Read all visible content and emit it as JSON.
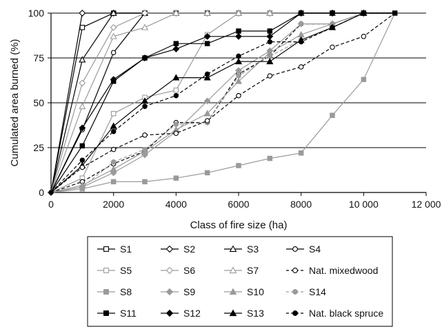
{
  "chart_data": {
    "type": "line",
    "title": "",
    "xlabel": "Class of fire size (ha)",
    "ylabel": "Cumulated area burned (%)",
    "xlim": [
      0,
      12000
    ],
    "ylim": [
      0,
      100
    ],
    "x_ticks": [
      0,
      2000,
      4000,
      6000,
      8000,
      10000,
      12000
    ],
    "x_tick_labels": [
      "0",
      "2000",
      "4000",
      "6000",
      "8000",
      "10 000",
      "12 000"
    ],
    "y_ticks": [
      0,
      25,
      50,
      75,
      100
    ],
    "y_tick_labels": [
      "0",
      "25",
      "50",
      "75",
      "100"
    ],
    "grid": "horizontal",
    "legend_position": "bottom",
    "series": [
      {
        "name": "S1",
        "color": "#000000",
        "dash": "solid",
        "marker": "square",
        "fill": "open",
        "x": [
          0,
          1000,
          2000,
          3000,
          4000,
          5000,
          6000,
          7000,
          8000,
          9000,
          10000,
          11000
        ],
        "y": [
          0,
          92,
          100,
          100,
          100,
          100,
          100,
          100,
          100,
          100,
          100,
          100
        ]
      },
      {
        "name": "S2",
        "color": "#000000",
        "dash": "solid",
        "marker": "diamond",
        "fill": "open",
        "x": [
          0,
          1000,
          2000,
          3000,
          4000,
          5000,
          6000,
          7000,
          8000,
          9000,
          10000,
          11000
        ],
        "y": [
          0,
          100,
          100,
          100,
          100,
          100,
          100,
          100,
          100,
          100,
          100,
          100
        ]
      },
      {
        "name": "S3",
        "color": "#000000",
        "dash": "solid",
        "marker": "triangle",
        "fill": "open",
        "x": [
          0,
          1000,
          2000,
          3000,
          4000,
          5000,
          6000,
          7000,
          8000,
          9000,
          10000,
          11000
        ],
        "y": [
          0,
          74,
          100,
          100,
          100,
          100,
          100,
          100,
          100,
          100,
          100,
          100
        ]
      },
      {
        "name": "S4",
        "color": "#000000",
        "dash": "solid",
        "marker": "circle",
        "fill": "open",
        "x": [
          0,
          1000,
          2000,
          3000,
          4000,
          5000,
          6000,
          7000,
          8000,
          9000,
          10000,
          11000
        ],
        "y": [
          0,
          35,
          78,
          100,
          100,
          100,
          100,
          100,
          100,
          100,
          100,
          100
        ]
      },
      {
        "name": "S5",
        "color": "#9a9a9a",
        "dash": "solid",
        "marker": "square",
        "fill": "open",
        "x": [
          0,
          1000,
          2000,
          3000,
          4000,
          5000,
          6000,
          7000,
          8000,
          9000,
          10000,
          11000
        ],
        "y": [
          0,
          8,
          44,
          53,
          57,
          88,
          100,
          100,
          100,
          100,
          100,
          100
        ]
      },
      {
        "name": "S6",
        "color": "#9a9a9a",
        "dash": "solid",
        "marker": "diamond",
        "fill": "open",
        "x": [
          0,
          1000,
          2000,
          3000,
          4000,
          5000,
          6000,
          7000,
          8000,
          9000,
          10000,
          11000
        ],
        "y": [
          0,
          61,
          92,
          100,
          100,
          100,
          100,
          100,
          100,
          100,
          100,
          100
        ]
      },
      {
        "name": "S7",
        "color": "#9a9a9a",
        "dash": "solid",
        "marker": "triangle",
        "fill": "open",
        "x": [
          0,
          1000,
          2000,
          3000,
          4000,
          5000,
          6000,
          7000,
          8000,
          9000,
          10000,
          11000
        ],
        "y": [
          0,
          48,
          87,
          92,
          100,
          100,
          100,
          100,
          100,
          100,
          100,
          100
        ]
      },
      {
        "name": "Nat. mixedwood",
        "color": "#000000",
        "dash": "dashed",
        "marker": "circle",
        "fill": "open",
        "x": [
          0,
          1000,
          2000,
          3000,
          4000,
          5000,
          6000,
          7000,
          8000,
          9000,
          10000,
          11000
        ],
        "y": [
          0,
          6,
          16,
          23,
          39,
          39,
          66,
          76,
          94,
          94,
          100,
          100
        ]
      },
      {
        "name": "S8",
        "color": "#9a9a9a",
        "dash": "solid",
        "marker": "square",
        "fill": "filled",
        "x": [
          0,
          1000,
          2000,
          3000,
          4000,
          5000,
          6000,
          7000,
          8000,
          9000,
          10000,
          11000
        ],
        "y": [
          0,
          2,
          6,
          6,
          8,
          11,
          15,
          19,
          22,
          43,
          63,
          100
        ]
      },
      {
        "name": "S9",
        "color": "#9a9a9a",
        "dash": "solid",
        "marker": "diamond",
        "fill": "filled",
        "x": [
          0,
          1000,
          2000,
          3000,
          4000,
          5000,
          6000,
          7000,
          8000,
          9000,
          10000,
          11000
        ],
        "y": [
          0,
          3,
          11,
          21,
          34,
          51,
          68,
          79,
          94,
          94,
          100,
          100
        ]
      },
      {
        "name": "S10",
        "color": "#9a9a9a",
        "dash": "solid",
        "marker": "triangle",
        "fill": "filled",
        "x": [
          0,
          1000,
          2000,
          3000,
          4000,
          5000,
          6000,
          7000,
          8000,
          9000,
          10000,
          11000
        ],
        "y": [
          0,
          4,
          13,
          23,
          35,
          44,
          62,
          78,
          88,
          94,
          100,
          100
        ]
      },
      {
        "name": "S14",
        "color": "#9a9a9a",
        "dash": "dashed",
        "marker": "circle",
        "fill": "filled",
        "x": [
          0,
          1000,
          2000,
          3000,
          4000,
          5000,
          6000,
          7000,
          8000,
          9000,
          10000,
          11000
        ],
        "y": [
          0,
          3,
          17,
          24,
          38,
          39,
          65,
          76,
          85,
          92,
          100,
          100
        ]
      },
      {
        "name": "S11",
        "color": "#000000",
        "dash": "solid",
        "marker": "square",
        "fill": "filled",
        "x": [
          0,
          1000,
          2000,
          3000,
          4000,
          5000,
          6000,
          7000,
          8000,
          9000,
          10000,
          11000
        ],
        "y": [
          0,
          26,
          62,
          75,
          83,
          83,
          90,
          90,
          100,
          100,
          100,
          100
        ]
      },
      {
        "name": "S12",
        "color": "#000000",
        "dash": "solid",
        "marker": "diamond",
        "fill": "filled",
        "x": [
          0,
          1000,
          2000,
          3000,
          4000,
          5000,
          6000,
          7000,
          8000,
          9000,
          10000,
          11000
        ],
        "y": [
          0,
          36,
          63,
          75,
          80,
          87,
          87,
          87,
          100,
          100,
          100,
          100
        ]
      },
      {
        "name": "S13",
        "color": "#000000",
        "dash": "solid",
        "marker": "triangle",
        "fill": "filled",
        "x": [
          0,
          1000,
          2000,
          3000,
          4000,
          5000,
          6000,
          7000,
          8000,
          9000,
          10000,
          11000
        ],
        "y": [
          0,
          15,
          37,
          51,
          64,
          64,
          73,
          73,
          85,
          92,
          100,
          100
        ]
      },
      {
        "name": "Nat. black spruce",
        "color": "#000000",
        "dash": "dashed",
        "marker": "circle",
        "fill": "filled",
        "x": [
          0,
          1000,
          2000,
          3000,
          4000,
          5000,
          6000,
          7000,
          8000,
          9000,
          10000,
          11000
        ],
        "y": [
          0,
          18,
          34,
          48,
          54,
          66,
          76,
          84,
          84,
          92,
          100,
          100
        ]
      },
      {
        "name": "",
        "color": "#000000",
        "dash": "dashed",
        "marker": "circle",
        "fill": "open",
        "x": [
          0,
          1000,
          2000,
          3000,
          4000,
          5000,
          6000,
          7000,
          8000,
          9000,
          10000,
          11000
        ],
        "y": [
          0,
          14,
          24,
          32,
          33,
          40,
          54,
          65,
          70,
          81,
          87,
          100
        ]
      }
    ],
    "legend": {
      "rows": [
        [
          "S1",
          "S2",
          "S3",
          "S4"
        ],
        [
          "S5",
          "S6",
          "S7",
          "Nat. mixedwood"
        ],
        [
          "S8",
          "S9",
          "S10",
          "S14"
        ],
        [
          "S11",
          "S12",
          "S13",
          "Nat. black spruce"
        ]
      ]
    }
  }
}
